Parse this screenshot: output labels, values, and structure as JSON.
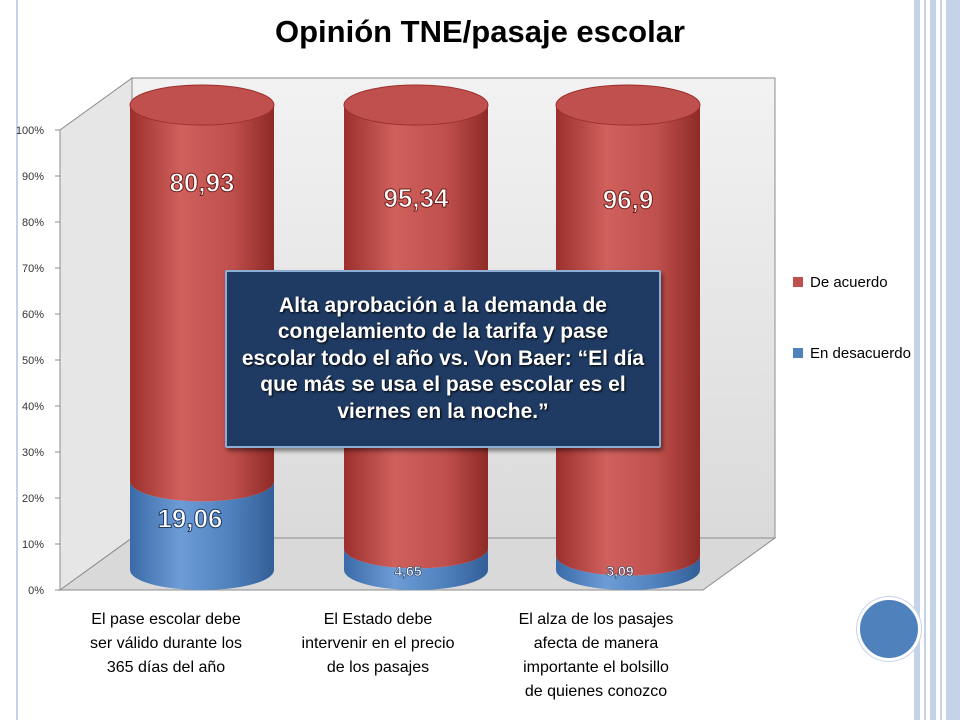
{
  "slide": {
    "title": "Opinión TNE/pasaje escolar",
    "callout": "Alta aprobación a la demanda de congelamiento de la tarifa y pase escolar todo el año vs. Von Baer: “El día que más se usa el pase escolar es el viernes en la noche.”"
  },
  "colors": {
    "accent": "#4f81bd",
    "callout_bg": "#1f3b63"
  },
  "chart_data": {
    "type": "bar",
    "stacked": true,
    "percent_stacked": true,
    "shape": "3d-cylinder",
    "categories": [
      "El pase escolar debe ser válido durante los 365 días del año",
      "El Estado  debe intervenir en el precio de los pasajes",
      "El alza de los pasajes afecta de manera importante el bolsillo de quienes conozco"
    ],
    "series": [
      {
        "name": "En desacuerdo",
        "values": [
          19.06,
          4.65,
          3.09
        ],
        "labels": [
          "19,06",
          "4,65",
          "3,09"
        ],
        "color": "#4f81bd"
      },
      {
        "name": "De acuerdo",
        "values": [
          80.93,
          95.34,
          96.9
        ],
        "labels": [
          "80,93",
          "95,34",
          "96,9"
        ],
        "color": "#c0504d"
      }
    ],
    "ylim": [
      0,
      100
    ],
    "y_ticks": [
      "0%",
      "10%",
      "20%",
      "30%",
      "40%",
      "50%",
      "60%",
      "70%",
      "80%",
      "90%",
      "100%"
    ],
    "legend": {
      "position": "right",
      "entries": [
        "De acuerdo",
        "En desacuerdo"
      ]
    },
    "grid": false,
    "title": "Opinión TNE/pasaje escolar",
    "xlabel": "",
    "ylabel": ""
  }
}
